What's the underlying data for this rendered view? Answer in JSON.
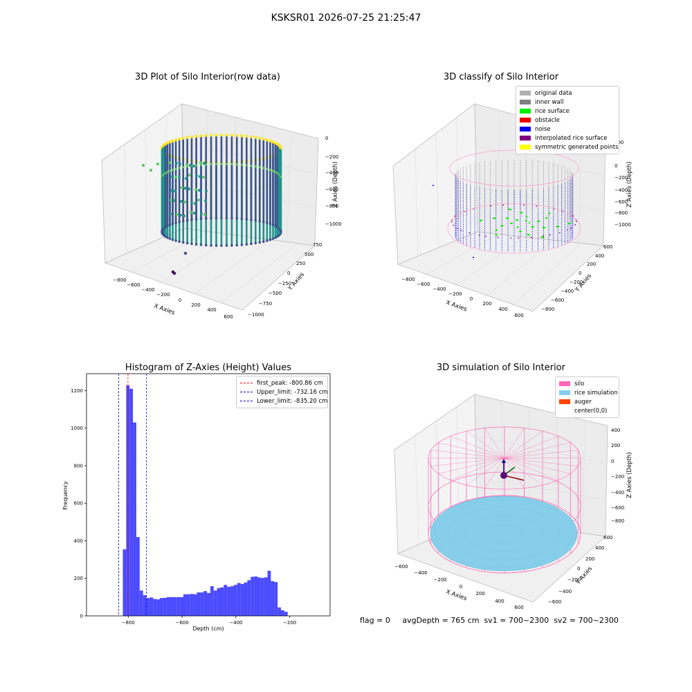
{
  "suptitle": "KSKSR01 2026-07-25 21:25:47",
  "footer": "flag = 0     avgDepth = 765 cm  sv1 = 700~2300  sv2 = 700~2300",
  "chart_data": [
    {
      "type": "scatter",
      "title": "3D Plot of Silo Interior(row data)",
      "xlabel": "X Axies",
      "ylabel": "Y Axies",
      "zlabel": "Z Axies (Depth)",
      "x_ticks": [
        "−800",
        "−600",
        "−400",
        "−200",
        "0",
        "200",
        "400",
        "600"
      ],
      "y_ticks": [
        "750",
        "500",
        "250",
        "0",
        "−250",
        "−500",
        "−750",
        "−1000"
      ],
      "z_ticks": [
        "0",
        "−200",
        "−400",
        "−600",
        "−800",
        "−1000"
      ],
      "colormap": [
        "#440154",
        "#3b528b",
        "#21918c",
        "#5ec962",
        "#fde725"
      ]
    },
    {
      "type": "scatter",
      "title": "3D classify of Silo Interior",
      "xlabel": "X Axies",
      "ylabel": "Y Axies",
      "zlabel": "Z Axies (Depth)",
      "x_ticks": [
        "−800",
        "−600",
        "−400",
        "−200",
        "0",
        "200",
        "400",
        "600"
      ],
      "y_ticks": [
        "600",
        "400",
        "200",
        "0",
        "−200",
        "−400",
        "−600",
        "−800"
      ],
      "z_ticks": [
        "200",
        "0",
        "−200",
        "−400",
        "−600",
        "−800",
        "−1000"
      ],
      "legend": [
        {
          "label": "original data",
          "color": "#b0b0b0"
        },
        {
          "label": "inner wall",
          "color": "#808080"
        },
        {
          "label": "rice surface",
          "color": "#00ee00"
        },
        {
          "label": "obstacle",
          "color": "#ee0000"
        },
        {
          "label": "noise",
          "color": "#0000ee"
        },
        {
          "label": "interpolated rice surface",
          "color": "#800080"
        },
        {
          "label": "symmetric generated points",
          "color": "#ffff00"
        }
      ]
    },
    {
      "type": "bar",
      "title": "Histogram of Z-Axies (Height) Values",
      "xlabel": "Depth (cm)",
      "ylabel": "Frequency",
      "xlim": [
        -955,
        -50
      ],
      "ylim": [
        0,
        1290
      ],
      "x_ticks": [
        -800,
        -600,
        -400,
        -200
      ],
      "y_ticks": [
        0,
        200,
        400,
        600,
        800,
        1000,
        1200
      ],
      "bar_color": "#4b4bff",
      "bin_start": -820,
      "bin_width": 12.5,
      "values": [
        355,
        1228,
        1210,
        1030,
        420,
        135,
        110,
        95,
        98,
        90,
        88,
        95,
        96,
        100,
        100,
        100,
        100,
        100,
        115,
        115,
        117,
        115,
        125,
        125,
        132,
        122,
        158,
        135,
        148,
        152,
        165,
        155,
        158,
        165,
        175,
        170,
        178,
        190,
        208,
        210,
        205,
        202,
        205,
        240,
        185,
        180,
        45,
        30,
        22
      ],
      "lines": [
        {
          "label": "first_peak: -800.86 cm",
          "x": -800.86,
          "color": "#ff0000"
        },
        {
          "label": "Upper_limit: -732.16 cm",
          "x": -732.16,
          "color": "#0000cc"
        },
        {
          "label": "Lower_limit: -835.20 cm",
          "x": -835.2,
          "color": "#0000cc"
        }
      ]
    },
    {
      "type": "scatter",
      "title": "3D simulation of Silo Interior",
      "xlabel": "X Axies",
      "ylabel": "Y Axies",
      "zlabel": "Z Axies (Depth)",
      "x_ticks": [
        "−600",
        "−400",
        "−200",
        "0",
        "200",
        "400",
        "600"
      ],
      "y_ticks": [
        "600",
        "400",
        "200",
        "0",
        "−200",
        "−400",
        "−600"
      ],
      "z_ticks": [
        "400",
        "200",
        "0",
        "−200",
        "−400",
        "−600",
        "−800"
      ],
      "legend": [
        {
          "label": "silo",
          "color": "#ff69b4"
        },
        {
          "label": "rice simulation",
          "color": "#87ceeb"
        },
        {
          "label": "auger",
          "color": "#ff4500"
        },
        {
          "label": "center(0,0)",
          "color": "none"
        }
      ]
    }
  ]
}
